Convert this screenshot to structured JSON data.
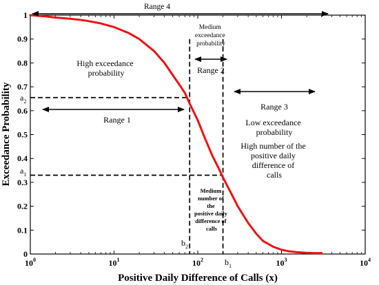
{
  "chart_data": {
    "type": "line",
    "xlabel": "Positive Daily Difference of Calls (x)",
    "ylabel": "Exceedance Probability",
    "xscale": "log",
    "xlim": [
      1,
      10000
    ],
    "ylim": [
      0,
      1
    ],
    "x_tick_values": [
      1,
      10,
      100,
      1000,
      10000
    ],
    "x_tick_labels": [
      {
        "base": "10",
        "exp": "0"
      },
      {
        "base": "10",
        "exp": "1"
      },
      {
        "base": "10",
        "exp": "2"
      },
      {
        "base": "10",
        "exp": "3"
      },
      {
        "base": "10",
        "exp": "4"
      }
    ],
    "y_ticks": [
      0,
      0.1,
      0.2,
      0.3,
      0.4,
      0.5,
      0.6,
      0.7,
      0.8,
      0.9,
      1
    ],
    "y_tick_labels": [
      "0",
      "0.1",
      "0.2",
      "0.3",
      "0.4",
      "0.5",
      "0.6",
      "0.7",
      "0.8",
      "0.9",
      "1"
    ],
    "grid": false,
    "curve_color": "#ee1111",
    "series": [
      {
        "x": [
          1,
          1.5,
          2,
          3,
          4,
          5,
          7,
          10,
          15,
          20,
          30,
          40,
          50,
          60,
          70,
          80,
          100,
          120,
          150,
          180,
          200,
          250,
          300,
          400,
          500,
          600,
          800,
          1000,
          1200,
          1500,
          2000,
          2500,
          3000
        ],
        "y": [
          1.0,
          0.995,
          0.99,
          0.985,
          0.98,
          0.975,
          0.965,
          0.95,
          0.925,
          0.9,
          0.85,
          0.8,
          0.75,
          0.71,
          0.675,
          0.63,
          0.56,
          0.49,
          0.41,
          0.355,
          0.32,
          0.255,
          0.2,
          0.13,
          0.085,
          0.055,
          0.03,
          0.018,
          0.012,
          0.008,
          0.005,
          0.004,
          0.004
        ]
      }
    ],
    "reference_points": {
      "a1": 0.33,
      "a2": 0.655,
      "b1": 200,
      "b2": 80
    },
    "labels": {
      "a1_main": "a",
      "a1_sub": "1",
      "a2_main": "a",
      "a2_sub": "2",
      "b1_main": "b",
      "b1_sub": "1",
      "b2_main": "b",
      "b2_sub": "2"
    },
    "annotations": {
      "range4": "Range 4",
      "range1": "Range 1",
      "range2": "Range 2",
      "range3": "Range 3",
      "high_exceed": [
        "High exceedance",
        "probability"
      ],
      "medium_exceed": [
        "Medium",
        "exceedance",
        "probability"
      ],
      "low_exceed": [
        "Low exceedance",
        "probability"
      ],
      "high_number": [
        "High number of the",
        "positive daily",
        "difference of",
        "calls"
      ],
      "medium_number": [
        "Medium",
        "number of",
        "the",
        "positive daily",
        "difference of",
        "calls"
      ]
    }
  }
}
